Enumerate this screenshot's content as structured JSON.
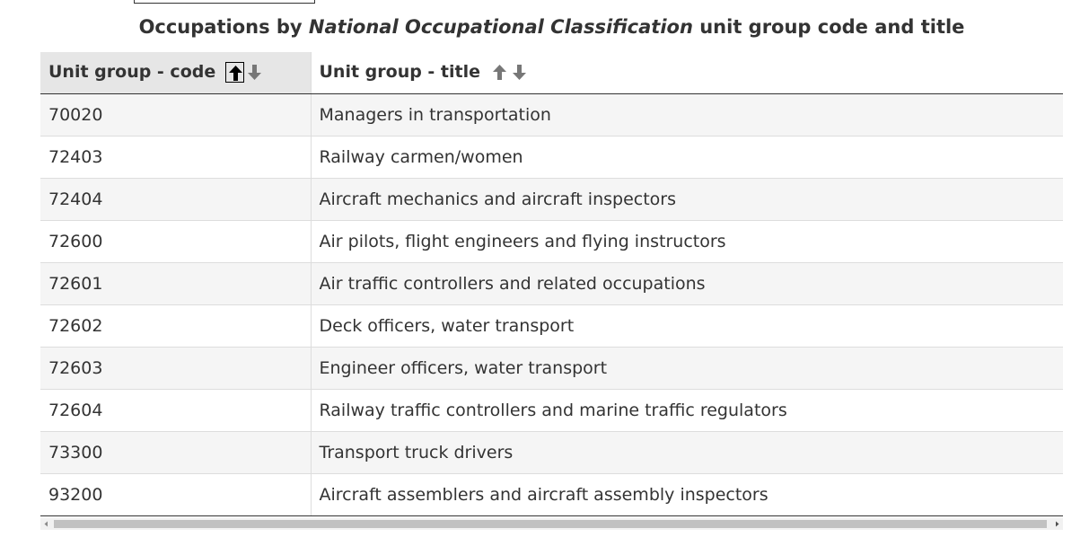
{
  "caption": {
    "prefix": "Occupations by ",
    "emphasis": "National Occupational Classification",
    "suffix": " unit group code and title"
  },
  "table": {
    "columns": [
      {
        "label": "Unit group - code",
        "sort_state": "ascending"
      },
      {
        "label": "Unit group - title",
        "sort_state": "none"
      }
    ],
    "rows": [
      {
        "code": "70020",
        "title": "Managers in transportation"
      },
      {
        "code": "72403",
        "title": "Railway carmen/women"
      },
      {
        "code": "72404",
        "title": "Aircraft mechanics and aircraft inspectors"
      },
      {
        "code": "72600",
        "title": "Air pilots, flight engineers and flying instructors"
      },
      {
        "code": "72601",
        "title": "Air traffic controllers and related occupations"
      },
      {
        "code": "72602",
        "title": "Deck officers, water transport"
      },
      {
        "code": "72603",
        "title": "Engineer officers, water transport"
      },
      {
        "code": "72604",
        "title": "Railway traffic controllers and marine traffic regulators"
      },
      {
        "code": "73300",
        "title": "Transport truck drivers"
      },
      {
        "code": "93200",
        "title": "Aircraft assemblers and aircraft assembly inspectors"
      }
    ]
  },
  "icons": {
    "sort_up": "arrow-up-icon",
    "sort_down": "arrow-down-icon",
    "scroll_left": "caret-left-icon",
    "scroll_right": "caret-right-icon"
  },
  "colors": {
    "active_arrow": "#000000",
    "inactive_arrow": "#777777",
    "header_sorted_bg": "#e6e6e6",
    "row_alt_bg": "#f5f5f5",
    "text": "#333333"
  }
}
